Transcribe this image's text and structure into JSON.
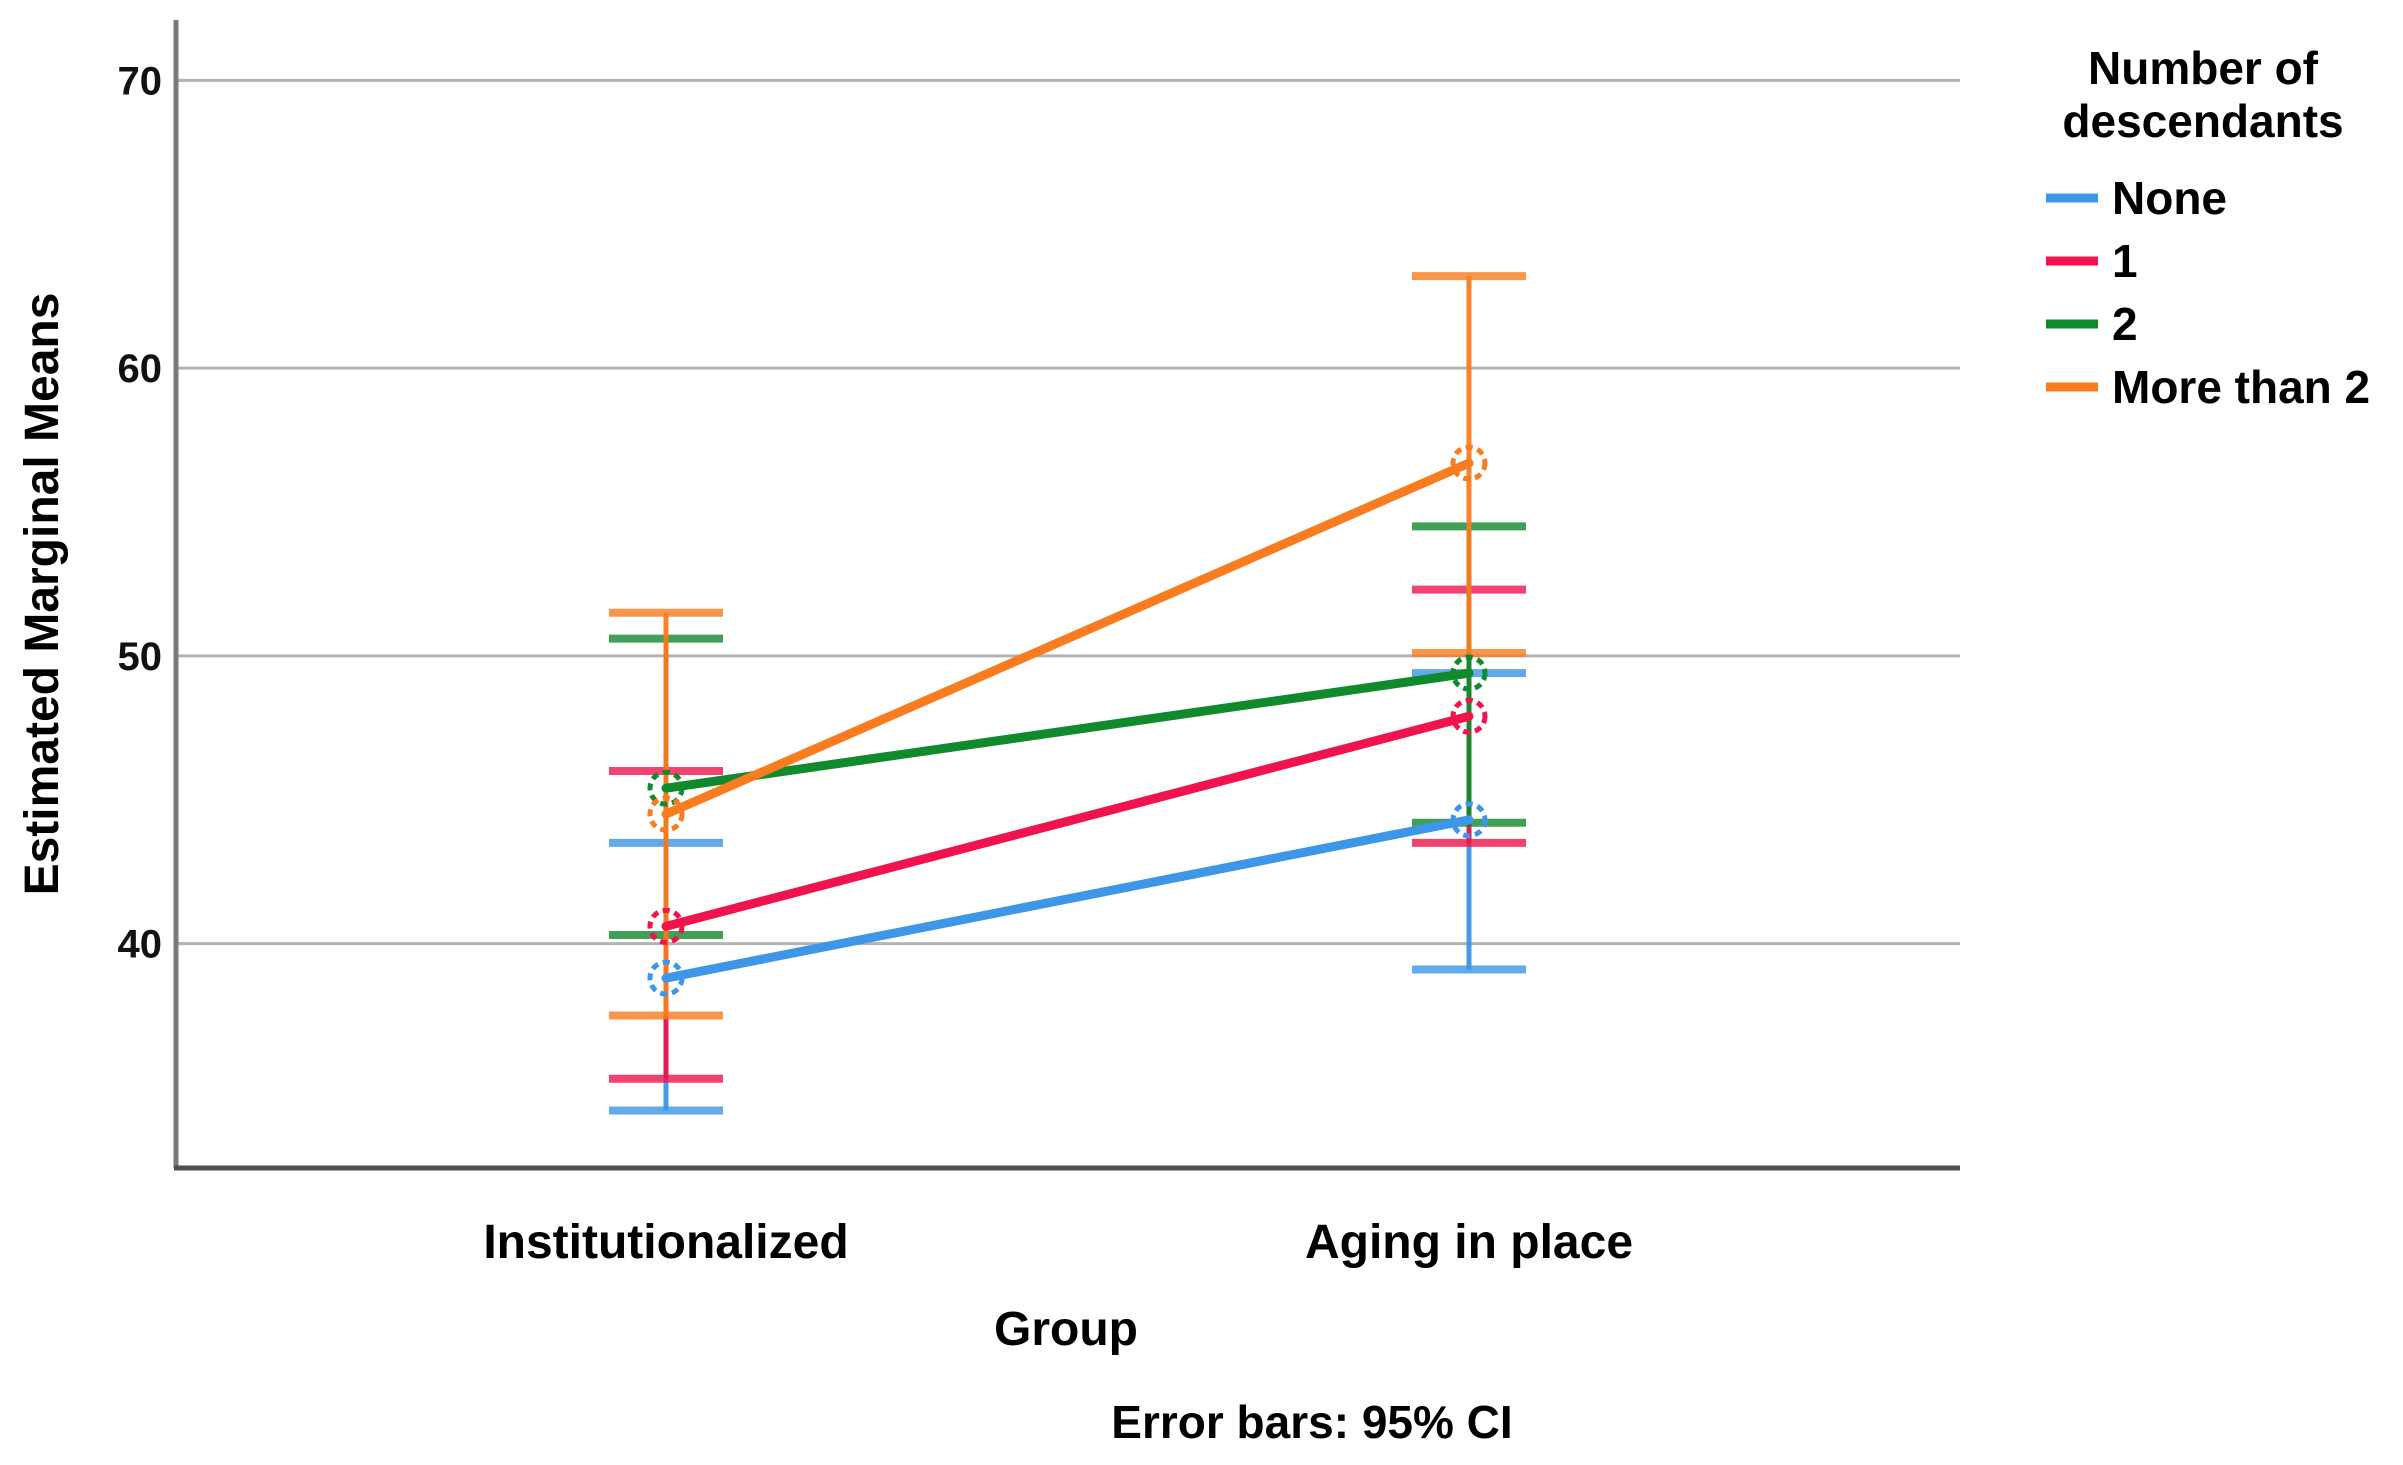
{
  "chart_data": {
    "type": "line",
    "subtype": "estimated-marginal-means-with-error-bars",
    "x_title": "Group",
    "y_title": "Estimated Marginal Means",
    "footnote": "Error bars: 95% CI",
    "categories": [
      "Institutionalized",
      "Aging in place"
    ],
    "y_ticks": [
      40,
      50,
      60,
      70
    ],
    "ylim": [
      32.2,
      72.1
    ],
    "grid": true,
    "legend": {
      "title_line1": "Number of",
      "title_line2": "descendants",
      "position": "right"
    },
    "series": [
      {
        "name": "None",
        "color": "#3D96E8",
        "means": [
          38.8,
          44.3
        ],
        "ci_low": [
          34.2,
          39.1
        ],
        "ci_high": [
          43.5,
          49.4
        ]
      },
      {
        "name": "1",
        "color": "#F0134D",
        "means": [
          40.6,
          47.9
        ],
        "ci_low": [
          35.3,
          43.5
        ],
        "ci_high": [
          46.0,
          52.3
        ]
      },
      {
        "name": "2",
        "color": "#118A2D",
        "means": [
          45.4,
          49.4
        ],
        "ci_low": [
          40.3,
          44.2
        ],
        "ci_high": [
          50.6,
          54.5
        ]
      },
      {
        "name": "More than 2",
        "color": "#F97C20",
        "means": [
          44.5,
          56.7
        ],
        "ci_low": [
          37.5,
          50.1
        ],
        "ci_high": [
          51.5,
          63.2
        ]
      }
    ],
    "colors": {
      "gridline": "#B3B3B3",
      "y_axis_line": "#7A7A7A",
      "x_axis_line": "#4F4F4F"
    }
  }
}
